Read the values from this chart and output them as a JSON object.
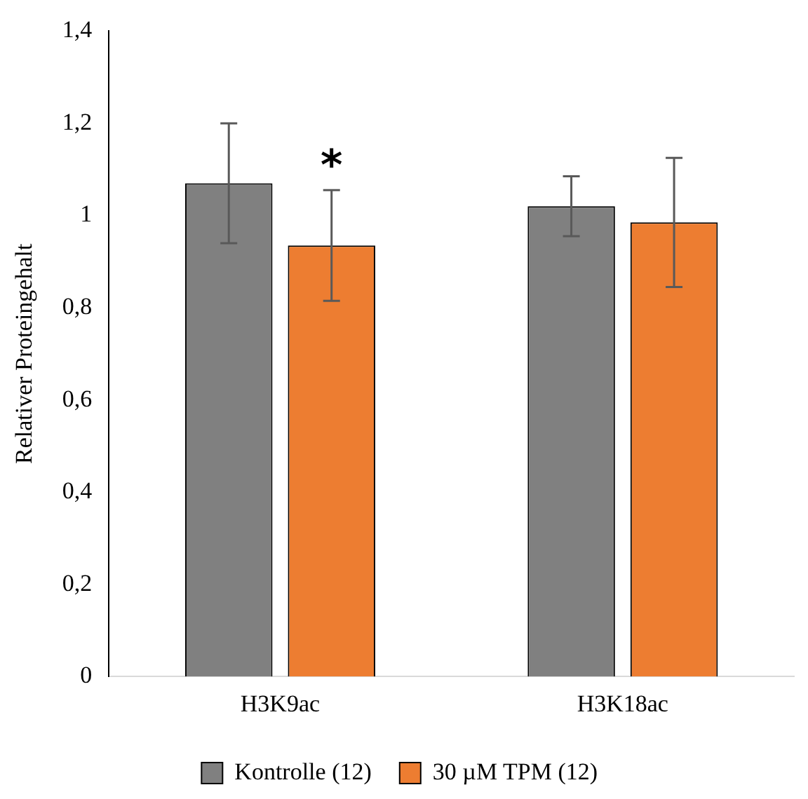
{
  "chart_data": {
    "type": "bar",
    "ylabel": "Relativer Proteingehalt",
    "categories": [
      "H3K9ac",
      "H3K18ac"
    ],
    "series": [
      {
        "name": "Kontrolle (12)",
        "color": "#808080",
        "values": [
          1.07,
          1.02
        ],
        "errors": [
          0.13,
          0.065
        ]
      },
      {
        "name": "30 µM TPM (12)",
        "color": "#ed7d31",
        "values": [
          0.935,
          0.985
        ],
        "errors": [
          0.12,
          0.14
        ]
      }
    ],
    "ylim": [
      0,
      1.4
    ],
    "yticks": [
      {
        "value": 0,
        "label": "0"
      },
      {
        "value": 0.2,
        "label": "0,2"
      },
      {
        "value": 0.4,
        "label": "0,4"
      },
      {
        "value": 0.6,
        "label": "0,6"
      },
      {
        "value": 0.8,
        "label": "0,8"
      },
      {
        "value": 1,
        "label": "1"
      },
      {
        "value": 1.2,
        "label": "1,2"
      },
      {
        "value": 1.4,
        "label": "1,4"
      }
    ],
    "grid": false,
    "legend": "bottom",
    "annotations": [
      "*"
    ]
  }
}
